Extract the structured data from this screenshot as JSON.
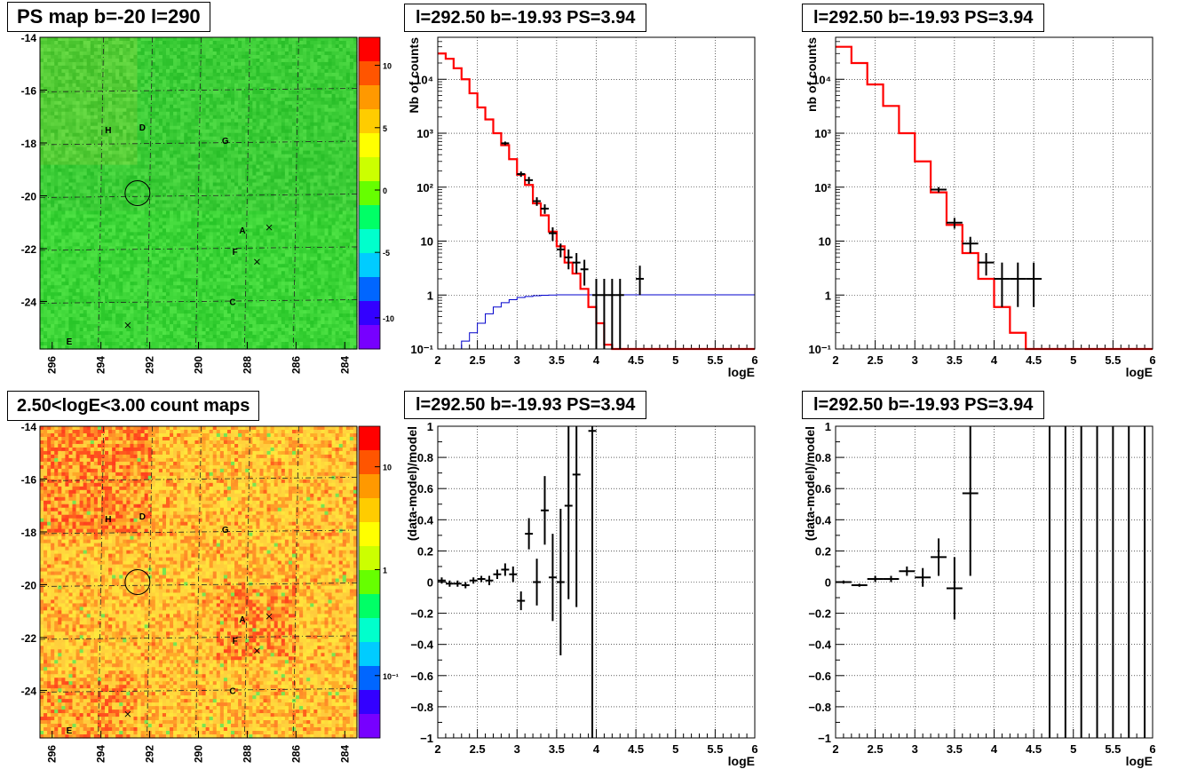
{
  "colors": {
    "model_line": "#ff0000",
    "exposure_line": "#0000cc",
    "data_marker": "#000000"
  },
  "panels": {
    "map_ps": {
      "title": "PS map b=-20 l=290",
      "y_ticks": [
        "-14",
        "-16",
        "-18",
        "-20",
        "-22",
        "-24"
      ],
      "x_ticks": [
        "296",
        "294",
        "292",
        "290",
        "288",
        "286",
        "284"
      ],
      "colorbar_ticks": [
        "10",
        "5",
        "0",
        "-5",
        "-10"
      ],
      "sources": [
        "H",
        "D",
        "G",
        "A",
        "F",
        "C",
        "E"
      ]
    },
    "map_counts": {
      "title": "2.50<logE<3.00 count maps",
      "y_ticks": [
        "-14",
        "-16",
        "-18",
        "-20",
        "-22",
        "-24"
      ],
      "x_ticks": [
        "296",
        "294",
        "292",
        "290",
        "288",
        "286",
        "284"
      ],
      "colorbar_ticks": [
        "10",
        "1",
        "10⁻¹"
      ],
      "sources": [
        "H",
        "D",
        "G",
        "A",
        "F",
        "C",
        "E"
      ]
    },
    "spec_left": {
      "title": "l=292.50 b=-19.93 PS=3.94",
      "ylabel": "Nb of counts",
      "xlabel": "logE",
      "x_ticks": [
        "2",
        "2.5",
        "3",
        "3.5",
        "4",
        "4.5",
        "5",
        "5.5",
        "6"
      ],
      "y_ticks": [
        "10⁻¹",
        "1",
        "10",
        "10²",
        "10³",
        "10⁴"
      ]
    },
    "spec_right": {
      "title": "l=292.50 b=-19.93 PS=3.94",
      "ylabel": "nb of counts",
      "xlabel": "logE",
      "x_ticks": [
        "2",
        "2.5",
        "3",
        "3.5",
        "4",
        "4.5",
        "5",
        "5.5",
        "6"
      ],
      "y_ticks": [
        "10⁻¹",
        "1",
        "10",
        "10²",
        "10³",
        "10⁴"
      ]
    },
    "resid_left": {
      "title": "l=292.50 b=-19.93 PS=3.94",
      "ylabel": "(data-model)/model",
      "xlabel": "logE",
      "x_ticks": [
        "2",
        "2.5",
        "3",
        "3.5",
        "4",
        "4.5",
        "5",
        "5.5",
        "6"
      ],
      "y_ticks": [
        "−1",
        "−0.8",
        "−0.6",
        "−0.4",
        "−0.2",
        "0",
        "0.2",
        "0.4",
        "0.6",
        "0.8",
        "1"
      ]
    },
    "resid_right": {
      "title": "l=292.50 b=-19.93 PS=3.94",
      "ylabel": "(data-model)/model",
      "xlabel": "logE",
      "x_ticks": [
        "2",
        "2.5",
        "3",
        "3.5",
        "4",
        "4.5",
        "5",
        "5.5",
        "6"
      ],
      "y_ticks": [
        "−1",
        "−0.8",
        "−0.6",
        "−0.4",
        "−0.2",
        "0",
        "0.2",
        "0.4",
        "0.6",
        "0.8",
        "1"
      ]
    }
  },
  "chart_data": [
    {
      "id": "map_ps",
      "type": "heatmap",
      "title": "PS map b=-20 l=290",
      "xlim": [
        296.5,
        283.5
      ],
      "ylim": [
        -25.8,
        -14
      ],
      "zlim": [
        -12,
        12
      ],
      "fill_level": 0.5,
      "sources": [
        {
          "label": "H",
          "l": 293.7,
          "b": -17.5
        },
        {
          "label": "D",
          "l": 292.3,
          "b": -17.4
        },
        {
          "label": "G",
          "l": 288.9,
          "b": -17.9
        },
        {
          "label": "A",
          "l": 288.2,
          "b": -21.3
        },
        {
          "label": "F",
          "l": 288.5,
          "b": -22.1
        },
        {
          "label": "C",
          "l": 288.6,
          "b": -24.0
        },
        {
          "label": "E",
          "l": 295.3,
          "b": -25.5
        }
      ],
      "markers_x": [
        {
          "l": 287.1,
          "b": -21.2
        },
        {
          "l": 287.6,
          "b": -22.5
        },
        {
          "l": 292.9,
          "b": -24.9
        }
      ],
      "circle": {
        "l": 292.5,
        "b": -19.9
      }
    },
    {
      "id": "map_counts",
      "type": "heatmap",
      "title": "2.50<logE<3.00 count maps",
      "xlim": [
        296.5,
        283.5
      ],
      "ylim": [
        -25.8,
        -14
      ],
      "zscale": "log",
      "sources": [
        {
          "label": "H",
          "l": 293.7,
          "b": -17.5
        },
        {
          "label": "D",
          "l": 292.3,
          "b": -17.4
        },
        {
          "label": "G",
          "l": 288.9,
          "b": -17.9
        },
        {
          "label": "A",
          "l": 288.2,
          "b": -21.3
        },
        {
          "label": "F",
          "l": 288.5,
          "b": -22.1
        },
        {
          "label": "C",
          "l": 288.6,
          "b": -24.0
        },
        {
          "label": "E",
          "l": 295.3,
          "b": -25.5
        }
      ],
      "markers_x": [
        {
          "l": 287.1,
          "b": -21.2
        },
        {
          "l": 287.6,
          "b": -22.5
        },
        {
          "l": 292.9,
          "b": -24.9
        }
      ],
      "circle": {
        "l": 292.5,
        "b": -19.9
      }
    },
    {
      "id": "spec_left",
      "type": "line",
      "title": "l=292.50 b=-19.93 PS=3.94",
      "xlabel": "logE",
      "ylabel": "Nb of counts",
      "xlim": [
        2,
        6
      ],
      "ylim": [
        0.1,
        60000
      ],
      "yscale": "log",
      "grid": true,
      "model_hist": {
        "edges": [
          2.0,
          2.1,
          2.2,
          2.3,
          2.4,
          2.5,
          2.6,
          2.7,
          2.8,
          2.9,
          3.0,
          3.1,
          3.2,
          3.3,
          3.4,
          3.5,
          3.6,
          3.7,
          3.8,
          3.9,
          4.0,
          4.1,
          4.2,
          6.0
        ],
        "values": [
          30000,
          24000,
          16000,
          10000,
          5500,
          3000,
          1800,
          1000,
          600,
          330,
          170,
          110,
          50,
          30,
          15,
          8,
          4,
          2.5,
          1.3,
          0.6,
          0.3,
          0.12,
          0.1
        ]
      },
      "exposure_hist": {
        "edges": [
          2.2,
          2.3,
          2.4,
          2.5,
          2.6,
          2.7,
          2.8,
          2.9,
          3.0,
          3.1,
          3.2,
          3.3,
          3.4,
          3.5,
          3.6,
          6.0
        ],
        "values": [
          0.1,
          0.14,
          0.2,
          0.3,
          0.45,
          0.6,
          0.72,
          0.82,
          0.9,
          0.94,
          0.97,
          0.99,
          1.0,
          1.01,
          1.01
        ]
      },
      "data_points": [
        {
          "x": 2.85,
          "y": 650,
          "ylo": 600,
          "yhi": 700
        },
        {
          "x": 3.05,
          "y": 175,
          "ylo": 155,
          "yhi": 195
        },
        {
          "x": 3.15,
          "y": 135,
          "ylo": 115,
          "yhi": 155
        },
        {
          "x": 3.25,
          "y": 55,
          "ylo": 45,
          "yhi": 65
        },
        {
          "x": 3.35,
          "y": 40,
          "ylo": 32,
          "yhi": 48
        },
        {
          "x": 3.45,
          "y": 14,
          "ylo": 10,
          "yhi": 18
        },
        {
          "x": 3.55,
          "y": 7,
          "ylo": 5,
          "yhi": 9
        },
        {
          "x": 3.65,
          "y": 5,
          "ylo": 3,
          "yhi": 7
        },
        {
          "x": 3.75,
          "y": 4,
          "ylo": 2.5,
          "yhi": 6
        },
        {
          "x": 3.85,
          "y": 3,
          "ylo": 1.5,
          "yhi": 4.5
        },
        {
          "x": 4.0,
          "y": 1,
          "ylo": 0.1,
          "yhi": 2
        },
        {
          "x": 4.1,
          "y": 1,
          "ylo": 0.1,
          "yhi": 2
        },
        {
          "x": 4.2,
          "y": 1,
          "ylo": 0.1,
          "yhi": 2
        },
        {
          "x": 4.3,
          "y": 1,
          "ylo": 0.1,
          "yhi": 2
        },
        {
          "x": 4.55,
          "y": 2,
          "ylo": 1,
          "yhi": 3.5
        }
      ]
    },
    {
      "id": "spec_right",
      "type": "line",
      "title": "l=292.50 b=-19.93 PS=3.94",
      "xlabel": "logE",
      "ylabel": "nb of counts",
      "xlim": [
        2,
        6
      ],
      "ylim": [
        0.1,
        60000
      ],
      "yscale": "log",
      "grid": true,
      "model_hist": {
        "edges": [
          2.0,
          2.2,
          2.4,
          2.6,
          2.8,
          3.0,
          3.2,
          3.4,
          3.6,
          3.8,
          4.0,
          4.2,
          4.4,
          6.0
        ],
        "values": [
          40000,
          20000,
          8000,
          3200,
          1000,
          300,
          80,
          20,
          6,
          2,
          0.6,
          0.2,
          0.1
        ]
      },
      "data_points": [
        {
          "x": 3.3,
          "y": 90,
          "ylo": 80,
          "yhi": 100,
          "xerr": 0.1
        },
        {
          "x": 3.5,
          "y": 22,
          "ylo": 17,
          "yhi": 27,
          "xerr": 0.1
        },
        {
          "x": 3.7,
          "y": 9,
          "ylo": 6,
          "yhi": 12,
          "xerr": 0.1
        },
        {
          "x": 3.9,
          "y": 4,
          "ylo": 2.3,
          "yhi": 6,
          "xerr": 0.1
        },
        {
          "x": 4.1,
          "y": 2,
          "ylo": 0.6,
          "yhi": 4,
          "xerr": 0.1
        },
        {
          "x": 4.3,
          "y": 2,
          "ylo": 0.6,
          "yhi": 4,
          "xerr": 0.1
        },
        {
          "x": 4.5,
          "y": 2,
          "ylo": 0.6,
          "yhi": 4,
          "xerr": 0.1
        }
      ]
    },
    {
      "id": "resid_left",
      "type": "scatter",
      "title": "l=292.50 b=-19.93 PS=3.94",
      "xlabel": "logE",
      "ylabel": "(data-model)/model",
      "xlim": [
        2,
        6
      ],
      "ylim": [
        -1,
        1
      ],
      "grid": true,
      "data_points": [
        {
          "x": 2.05,
          "y": 0.01,
          "err": 0.02,
          "xerr": 0.05
        },
        {
          "x": 2.15,
          "y": -0.01,
          "err": 0.02,
          "xerr": 0.05
        },
        {
          "x": 2.25,
          "y": -0.01,
          "err": 0.02,
          "xerr": 0.05
        },
        {
          "x": 2.35,
          "y": -0.02,
          "err": 0.02,
          "xerr": 0.05
        },
        {
          "x": 2.45,
          "y": 0.01,
          "err": 0.02,
          "xerr": 0.05
        },
        {
          "x": 2.55,
          "y": 0.02,
          "err": 0.02,
          "xerr": 0.05
        },
        {
          "x": 2.65,
          "y": 0.01,
          "err": 0.03,
          "xerr": 0.05
        },
        {
          "x": 2.75,
          "y": 0.05,
          "err": 0.03,
          "xerr": 0.05
        },
        {
          "x": 2.85,
          "y": 0.08,
          "err": 0.04,
          "xerr": 0.05
        },
        {
          "x": 2.95,
          "y": 0.05,
          "err": 0.05,
          "xerr": 0.05
        },
        {
          "x": 3.05,
          "y": -0.12,
          "err": 0.06,
          "xerr": 0.05
        },
        {
          "x": 3.15,
          "y": 0.31,
          "err": 0.1,
          "xerr": 0.05
        },
        {
          "x": 3.25,
          "y": 0.0,
          "err": 0.15,
          "xerr": 0.05
        },
        {
          "x": 3.35,
          "y": 0.46,
          "err": 0.22,
          "xerr": 0.05
        },
        {
          "x": 3.45,
          "y": 0.03,
          "err": 0.28,
          "xerr": 0.05
        },
        {
          "x": 3.55,
          "y": 0.0,
          "err": 0.47,
          "xerr": 0.05
        },
        {
          "x": 3.65,
          "y": 0.49,
          "err": 0.6,
          "xerr": 0.05
        },
        {
          "x": 3.75,
          "y": 0.69,
          "err": 0.85,
          "xerr": 0.05
        },
        {
          "x": 3.95,
          "y": 0.97,
          "err": 2.0,
          "xerr": 0.05
        }
      ]
    },
    {
      "id": "resid_right",
      "type": "scatter",
      "title": "l=292.50 b=-19.93 PS=3.94",
      "xlabel": "logE",
      "ylabel": "(data-model)/model",
      "xlim": [
        2,
        6
      ],
      "ylim": [
        -1,
        1
      ],
      "grid": true,
      "data_points": [
        {
          "x": 2.1,
          "y": 0.0,
          "err": 0.01,
          "xerr": 0.1
        },
        {
          "x": 2.3,
          "y": -0.02,
          "err": 0.01,
          "xerr": 0.1
        },
        {
          "x": 2.5,
          "y": 0.02,
          "err": 0.02,
          "xerr": 0.1
        },
        {
          "x": 2.7,
          "y": 0.02,
          "err": 0.02,
          "xerr": 0.1
        },
        {
          "x": 2.9,
          "y": 0.07,
          "err": 0.03,
          "xerr": 0.1
        },
        {
          "x": 3.1,
          "y": 0.03,
          "err": 0.06,
          "xerr": 0.1
        },
        {
          "x": 3.3,
          "y": 0.16,
          "err": 0.12,
          "xerr": 0.1
        },
        {
          "x": 3.5,
          "y": -0.04,
          "err": 0.2,
          "xerr": 0.1
        },
        {
          "x": 3.7,
          "y": 0.57,
          "err": 0.53,
          "xerr": 0.1
        },
        {
          "x": 4.7,
          "y": 0.0,
          "err": 2.0,
          "xerr": 0.0
        },
        {
          "x": 4.9,
          "y": 0.0,
          "err": 2.0,
          "xerr": 0.0
        },
        {
          "x": 5.1,
          "y": 0.0,
          "err": 2.0,
          "xerr": 0.0
        },
        {
          "x": 5.3,
          "y": 0.0,
          "err": 2.0,
          "xerr": 0.0
        },
        {
          "x": 5.5,
          "y": 0.0,
          "err": 2.0,
          "xerr": 0.0
        },
        {
          "x": 5.7,
          "y": 0.0,
          "err": 2.0,
          "xerr": 0.0
        },
        {
          "x": 5.9,
          "y": 0.0,
          "err": 2.0,
          "xerr": 0.0
        }
      ]
    }
  ]
}
